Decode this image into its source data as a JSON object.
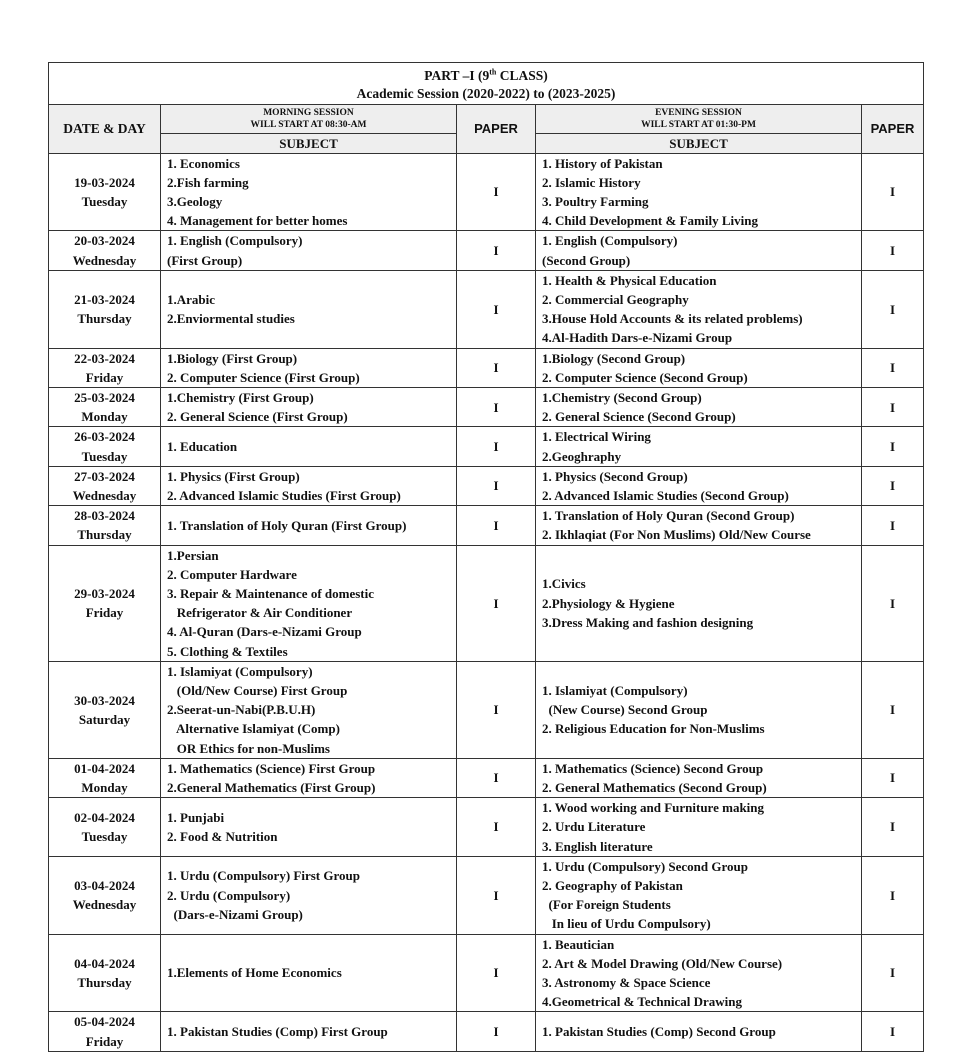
{
  "header": {
    "title_prefix": "PART –I (9",
    "title_sup": "th",
    "title_suffix": " CLASS)",
    "session": "Academic Session (2020-2022) to (2023-2025)",
    "date_day": "DATE & DAY",
    "morning_line1": "MORNING SESSION",
    "morning_line2": "WILL START AT 08:30-AM",
    "evening_line1": "EVENING SESSION",
    "evening_line2": "WILL START AT 01:30-PM",
    "paper": "PAPER",
    "subject": "SUBJECT"
  },
  "rows": [
    {
      "date": "19-03-2024",
      "day": "Tuesday",
      "morning": [
        "1. Economics",
        "2.Fish farming",
        "3.Geology",
        "4. Management for better homes"
      ],
      "paper_m": "I",
      "evening": [
        "1. History of Pakistan",
        "2. Islamic History",
        "3. Poultry Farming",
        "4. Child Development & Family Living"
      ],
      "paper_e": "I"
    },
    {
      "date": "20-03-2024",
      "day": "Wednesday",
      "morning": [
        "1. English (Compulsory)",
        "(First Group)"
      ],
      "paper_m": "I",
      "evening": [
        "1. English (Compulsory)",
        "(Second Group)"
      ],
      "paper_e": "I"
    },
    {
      "date": "21-03-2024",
      "day": "Thursday",
      "morning": [
        "1.Arabic",
        "2.Enviormental studies"
      ],
      "paper_m": "I",
      "evening": [
        "1. Health & Physical Education",
        "2. Commercial Geography",
        "3.House Hold Accounts & its related problems)",
        "4.Al-Hadith Dars-e-Nizami Group"
      ],
      "paper_e": "I"
    },
    {
      "date": "22-03-2024",
      "day": "Friday",
      "morning": [
        "1.Biology (First Group)",
        "2. Computer Science (First Group)"
      ],
      "paper_m": "I",
      "evening": [
        "1.Biology (Second Group)",
        "2. Computer Science (Second Group)"
      ],
      "paper_e": "I"
    },
    {
      "date": "25-03-2024",
      "day": "Monday",
      "morning": [
        "1.Chemistry (First Group)",
        "2. General Science (First Group)"
      ],
      "paper_m": "I",
      "evening": [
        "1.Chemistry (Second Group)",
        "2. General Science (Second Group)"
      ],
      "paper_e": "I"
    },
    {
      "date": "26-03-2024",
      "day": "Tuesday",
      "morning": [
        "1. Education"
      ],
      "paper_m": "I",
      "evening": [
        "1. Electrical Wiring",
        "2.Geoghraphy"
      ],
      "paper_e": "I"
    },
    {
      "date": "27-03-2024",
      "day": "Wednesday",
      "morning": [
        "1. Physics (First Group)",
        "2. Advanced Islamic Studies (First Group)"
      ],
      "paper_m": "I",
      "evening": [
        "1. Physics (Second Group)",
        "2. Advanced Islamic Studies (Second Group)"
      ],
      "paper_e": "I"
    },
    {
      "date": "28-03-2024",
      "day": "Thursday",
      "morning": [
        "1. Translation of Holy Quran (First Group)"
      ],
      "paper_m": "I",
      "evening": [
        "1. Translation of Holy Quran (Second Group)",
        "2. Ikhlaqiat (For Non Muslims) Old/New Course"
      ],
      "paper_e": "I"
    },
    {
      "date": "29-03-2024",
      "day": "Friday",
      "morning": [
        "1.Persian",
        "2. Computer Hardware",
        "3. Repair & Maintenance of domestic",
        "   Refrigerator & Air Conditioner",
        "4. Al-Quran (Dars-e-Nizami Group",
        "5. Clothing & Textiles"
      ],
      "paper_m": "I",
      "evening": [
        "1.Civics",
        "2.Physiology & Hygiene",
        "3.Dress Making and fashion designing"
      ],
      "paper_e": "I"
    },
    {
      "date": "30-03-2024",
      "day": "Saturday",
      "morning": [
        "1. Islamiyat (Compulsory)",
        "   (Old/New Course) First Group",
        "2.Seerat-un-Nabi(P.B.U.H)",
        "   Alternative Islamiyat (Comp)",
        "   OR Ethics for non-Muslims"
      ],
      "paper_m": "I",
      "evening": [
        "1. Islamiyat (Compulsory)",
        "  (New Course) Second Group",
        "2. Religious Education for Non-Muslims"
      ],
      "paper_e": "I"
    },
    {
      "date": "01-04-2024",
      "day": "Monday",
      "morning": [
        "1. Mathematics (Science) First Group",
        "2.General Mathematics (First Group)"
      ],
      "paper_m": "I",
      "evening": [
        "1. Mathematics (Science) Second Group",
        "2. General Mathematics (Second Group)"
      ],
      "paper_e": "I"
    },
    {
      "date": "02-04-2024",
      "day": "Tuesday",
      "morning": [
        "1. Punjabi",
        "2. Food & Nutrition"
      ],
      "paper_m": "I",
      "evening": [
        "1. Wood working and Furniture making",
        "2. Urdu Literature",
        "3. English literature"
      ],
      "paper_e": "I"
    },
    {
      "date": "03-04-2024",
      "day": "Wednesday",
      "morning": [
        "1. Urdu (Compulsory) First Group",
        "2. Urdu (Compulsory)",
        "  (Dars-e-Nizami Group)"
      ],
      "paper_m": "I",
      "evening": [
        "1. Urdu (Compulsory) Second Group",
        "2. Geography of Pakistan",
        "  (For Foreign Students",
        "   In lieu of Urdu Compulsory)"
      ],
      "paper_e": "I"
    },
    {
      "date": "04-04-2024",
      "day": "Thursday",
      "morning": [
        "1.Elements of Home Economics"
      ],
      "paper_m": "I",
      "evening": [
        "1. Beautician",
        "2. Art & Model Drawing (Old/New Course)",
        "3. Astronomy & Space Science",
        "4.Geometrical & Technical Drawing"
      ],
      "paper_e": "I"
    },
    {
      "date": "05-04-2024",
      "day": "Friday",
      "morning": [
        "1. Pakistan Studies (Comp) First Group"
      ],
      "paper_m": "I",
      "evening": [
        "1. Pakistan Studies (Comp) Second Group"
      ],
      "paper_e": "I"
    }
  ]
}
